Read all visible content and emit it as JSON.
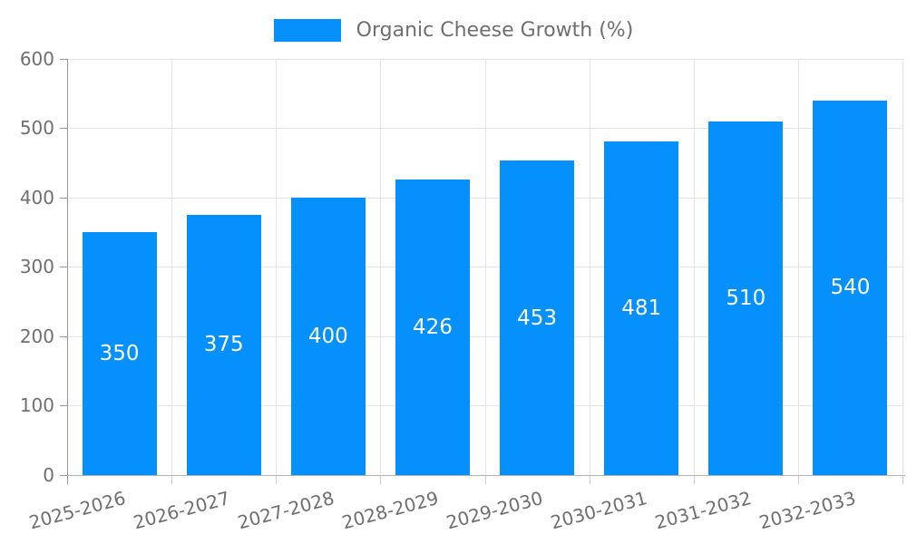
{
  "chart_data": {
    "type": "bar",
    "title": "Organic Cheese Growth (%)",
    "legend": "Organic Cheese Growth (%)",
    "legend_position": "top",
    "categories": [
      "2025-2026",
      "2026-2027",
      "2027-2028",
      "2028-2029",
      "2029-2030",
      "2030-2031",
      "2031-2032",
      "2032-2033"
    ],
    "values": [
      350,
      375,
      400,
      426,
      453,
      481,
      510,
      540
    ],
    "ylim": [
      0,
      600
    ],
    "yticks": [
      0,
      100,
      200,
      300,
      400,
      500,
      600
    ],
    "grid": true,
    "colors": {
      "bar": "#0590FB",
      "bar_value_text": "#ffffff",
      "axis_text": "#6f6f6f",
      "y_axis_line": "#979797",
      "x_axis_line": "#b3b3b3",
      "x_tick": "#cfcfcf",
      "gridline": "#e4e4e4",
      "background": "#ffffff"
    }
  }
}
